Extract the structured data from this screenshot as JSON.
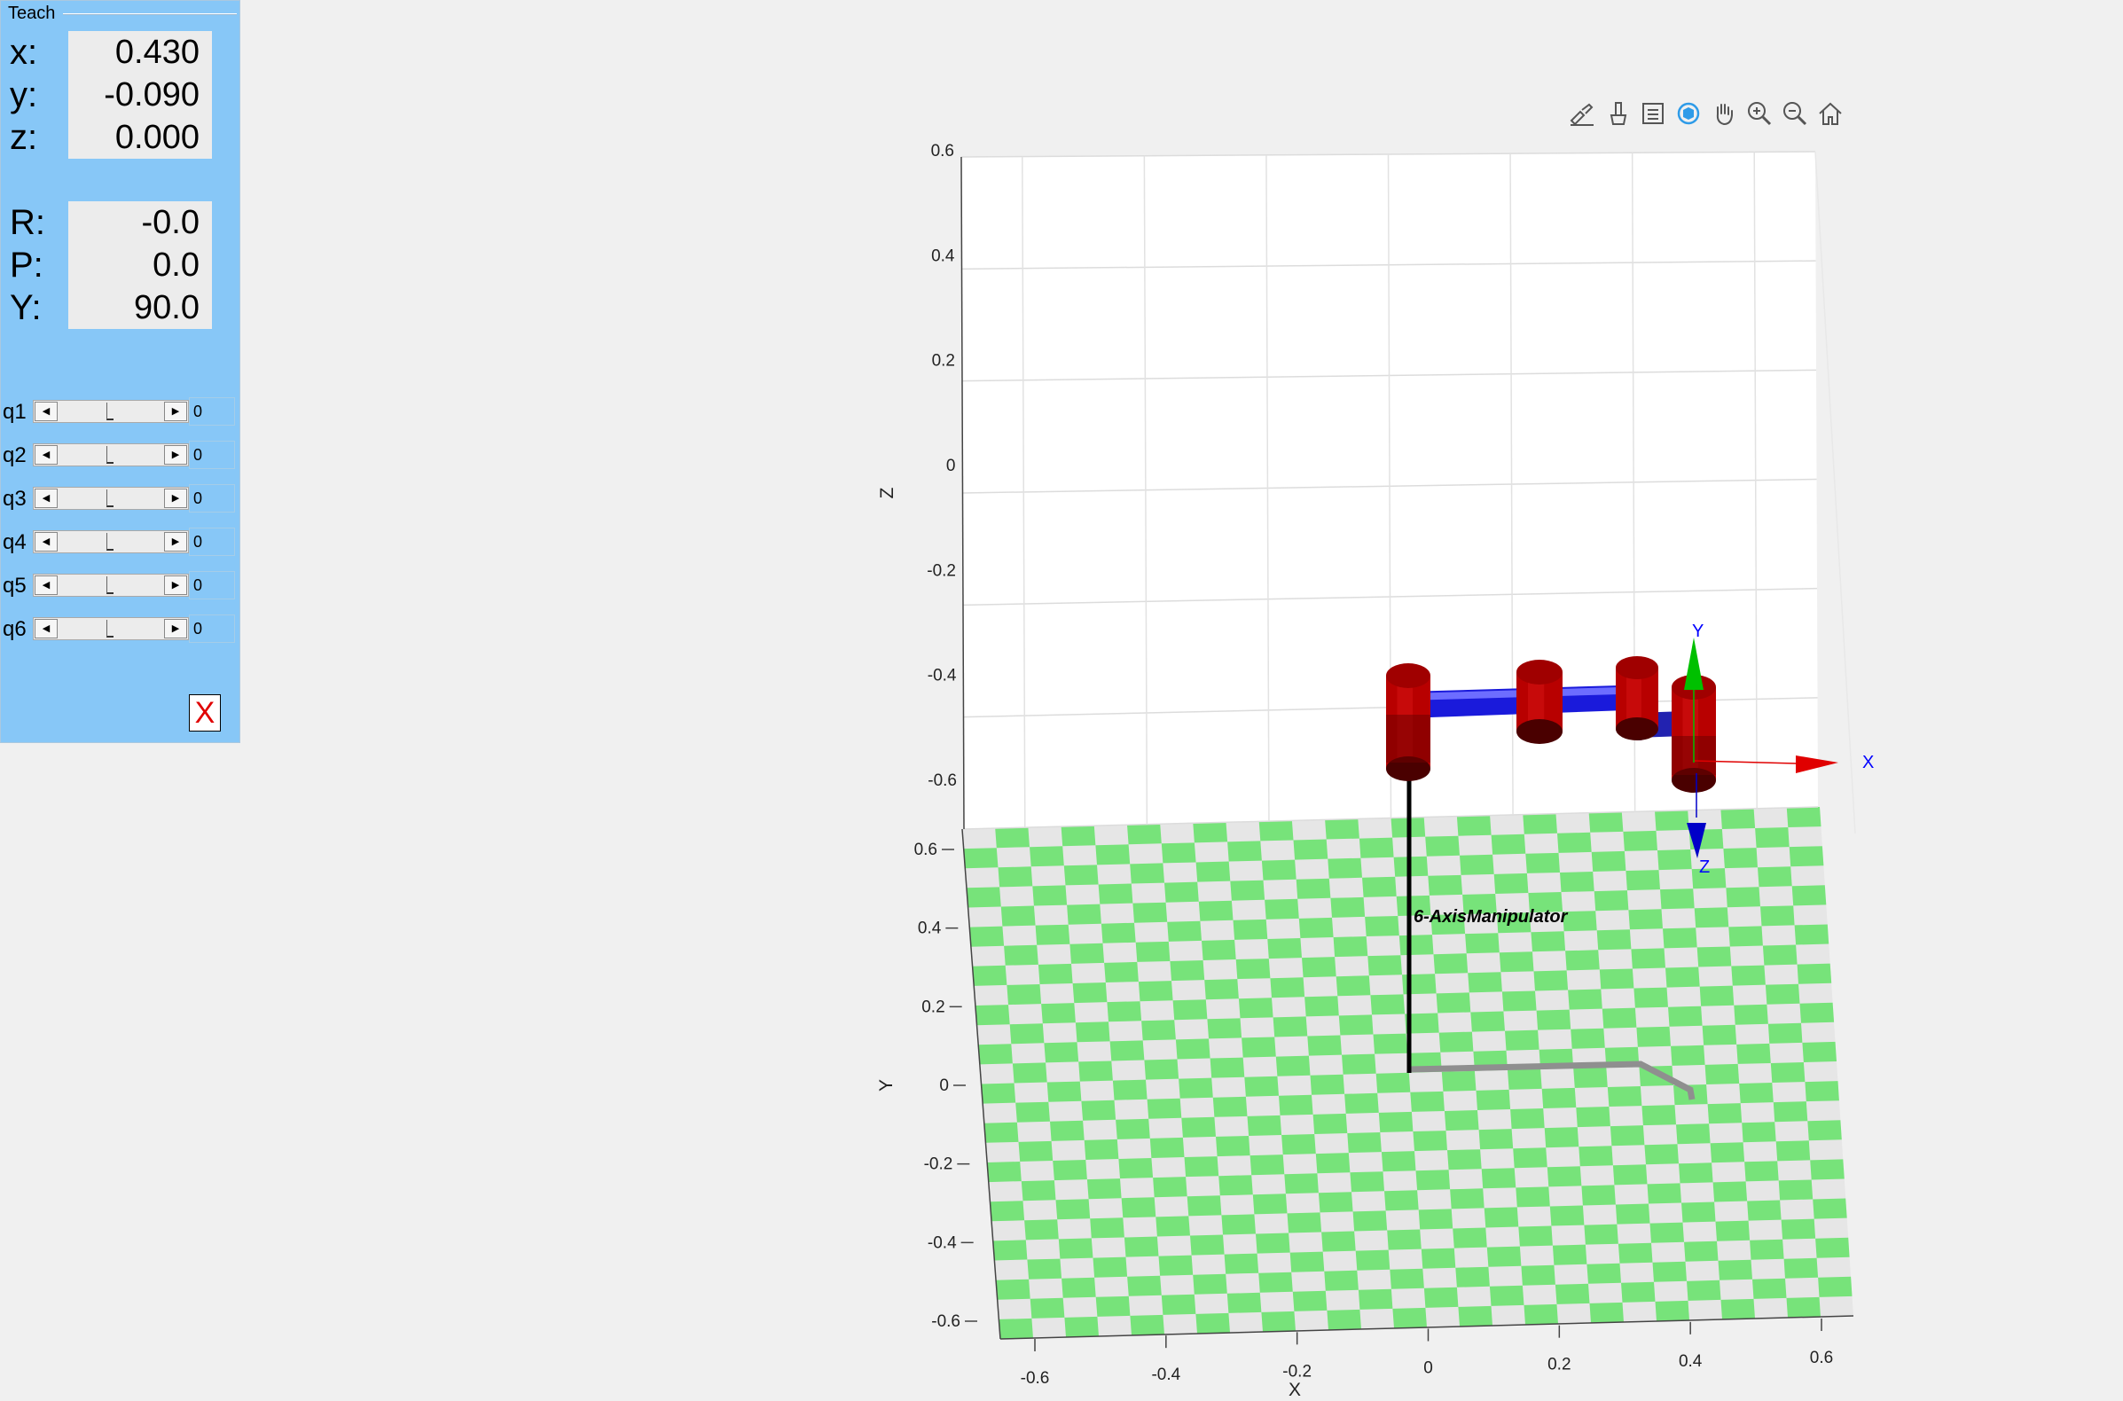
{
  "panel": {
    "title": "Teach",
    "position": [
      {
        "label": "x:",
        "value": "0.430"
      },
      {
        "label": "y:",
        "value": "-0.090"
      },
      {
        "label": "z:",
        "value": "0.000"
      }
    ],
    "orientation": [
      {
        "label": "R:",
        "value": "-0.0"
      },
      {
        "label": "P:",
        "value": "0.0"
      },
      {
        "label": "Y:",
        "value": "90.0"
      }
    ],
    "joints": [
      {
        "label": "q1",
        "value": "0"
      },
      {
        "label": "q2",
        "value": "0"
      },
      {
        "label": "q3",
        "value": "0"
      },
      {
        "label": "q4",
        "value": "0"
      },
      {
        "label": "q5",
        "value": "0"
      },
      {
        "label": "q6",
        "value": "0"
      }
    ],
    "close_label": "X"
  },
  "toolbar": {
    "icons": [
      "brush-icon",
      "data-tips-icon",
      "legend-icon",
      "rotate-3d-icon",
      "pan-icon",
      "zoom-in-icon",
      "zoom-out-icon",
      "home-icon"
    ],
    "active": "rotate-3d-icon"
  },
  "plot": {
    "z_ticks": [
      "0.6",
      "0.4",
      "0.2",
      "0",
      "-0.2",
      "-0.4",
      "-0.6"
    ],
    "y_ticks": [
      "0.6",
      "0.4",
      "0.2",
      "0",
      "-0.2",
      "-0.4",
      "-0.6"
    ],
    "x_ticks": [
      "-0.6",
      "-0.4",
      "-0.2",
      "0",
      "0.2",
      "0.4",
      "0.6"
    ],
    "z_label": "Z",
    "y_label": "Y",
    "x_label": "X",
    "robot_name": "6-AxisManipulator",
    "frame_labels": {
      "x": "X",
      "y": "Y",
      "z": "Z"
    },
    "colors": {
      "link": "#1a1adb",
      "joint": "#b80000",
      "floor_green": "#77e37a",
      "floor_light": "#e6e6e6",
      "frame_x": "#e00000",
      "frame_y": "#00c000",
      "frame_z": "#0000c8",
      "frame_text": "#0000ff"
    }
  }
}
